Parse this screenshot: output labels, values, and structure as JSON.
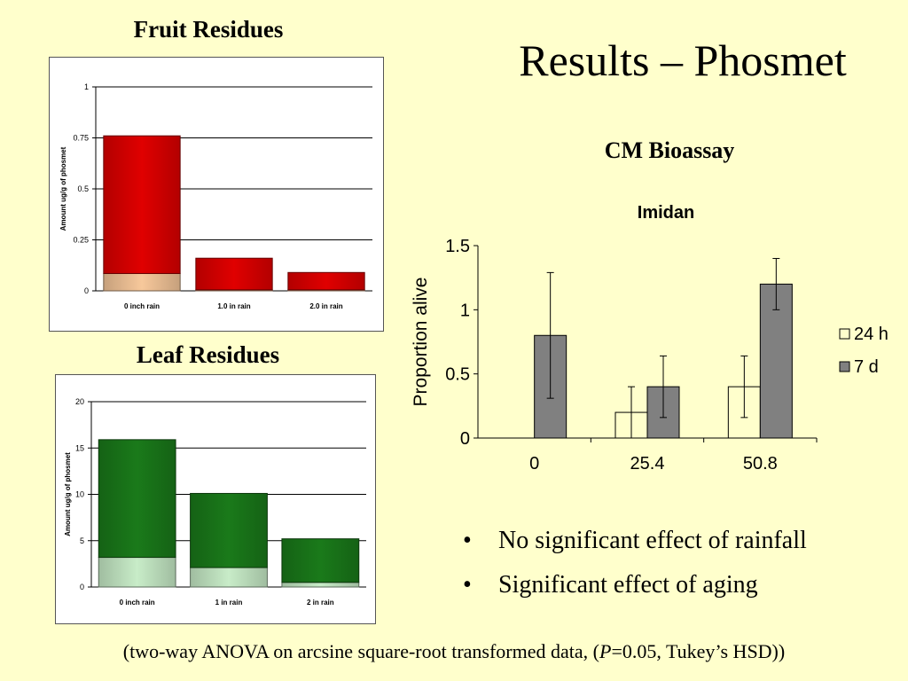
{
  "slide": {
    "title": "Results – Phosmet",
    "fruit_title": "Fruit Residues",
    "leaf_title": "Leaf Residues",
    "cm_title": "CM Bioassay",
    "bullets": [
      "No significant effect of rainfall",
      "Significant effect of aging"
    ],
    "bullet_mark": "•",
    "footnote_pre": "(two-way ANOVA on arcsine square-root transformed data, (",
    "footnote_italic": "P",
    "footnote_post": "=0.05, Tukey’s HSD))"
  },
  "chart_data": [
    {
      "id": "fruit",
      "type": "bar",
      "stacked": true,
      "ylabel": "Amount ug/g of phosmet",
      "ylim": [
        0,
        1
      ],
      "yticks": [
        "0",
        "0.25",
        "0.5",
        "0.75",
        "1"
      ],
      "categories": [
        "0 inch rain",
        "1.0 in rain",
        "2.0 in rain"
      ],
      "series": [
        {
          "values": [
            0.085,
            0.005,
            0.005
          ],
          "color": "#f7c89b"
        },
        {
          "values": [
            0.675,
            0.155,
            0.085
          ],
          "color": "#e00000"
        }
      ]
    },
    {
      "id": "leaf",
      "type": "bar",
      "stacked": true,
      "ylabel": "Amount ug/g of phosmet",
      "ylim": [
        0,
        20
      ],
      "yticks": [
        "0",
        "5",
        "10",
        "15",
        "20"
      ],
      "categories": [
        "0 inch rain",
        "1 in rain",
        "2 in rain"
      ],
      "series": [
        {
          "values": [
            3.2,
            2.1,
            0.5
          ],
          "color": "#c8ecc8"
        },
        {
          "values": [
            12.7,
            8.0,
            4.7
          ],
          "color": "#1a7a1a"
        }
      ]
    },
    {
      "id": "imidan",
      "type": "bar",
      "title": "Imidan",
      "ylabel": "Proportion alive",
      "ylim": [
        0,
        1.5
      ],
      "yticks": [
        "0",
        "0.5",
        "1",
        "1.5"
      ],
      "categories": [
        "0",
        "25.4",
        "50.8"
      ],
      "legend_position": "right",
      "series": [
        {
          "name": "24 h",
          "values": [
            0,
            0.2,
            0.4
          ],
          "err_low": [
            0,
            0,
            0.16
          ],
          "err_high": [
            0,
            0.4,
            0.64
          ],
          "color": "#ffffcc"
        },
        {
          "name": "7 d",
          "values": [
            0.8,
            0.4,
            1.2
          ],
          "err_low": [
            0.31,
            0.16,
            1.0
          ],
          "err_high": [
            1.29,
            0.64,
            1.4
          ],
          "color": "#808080"
        }
      ]
    }
  ]
}
